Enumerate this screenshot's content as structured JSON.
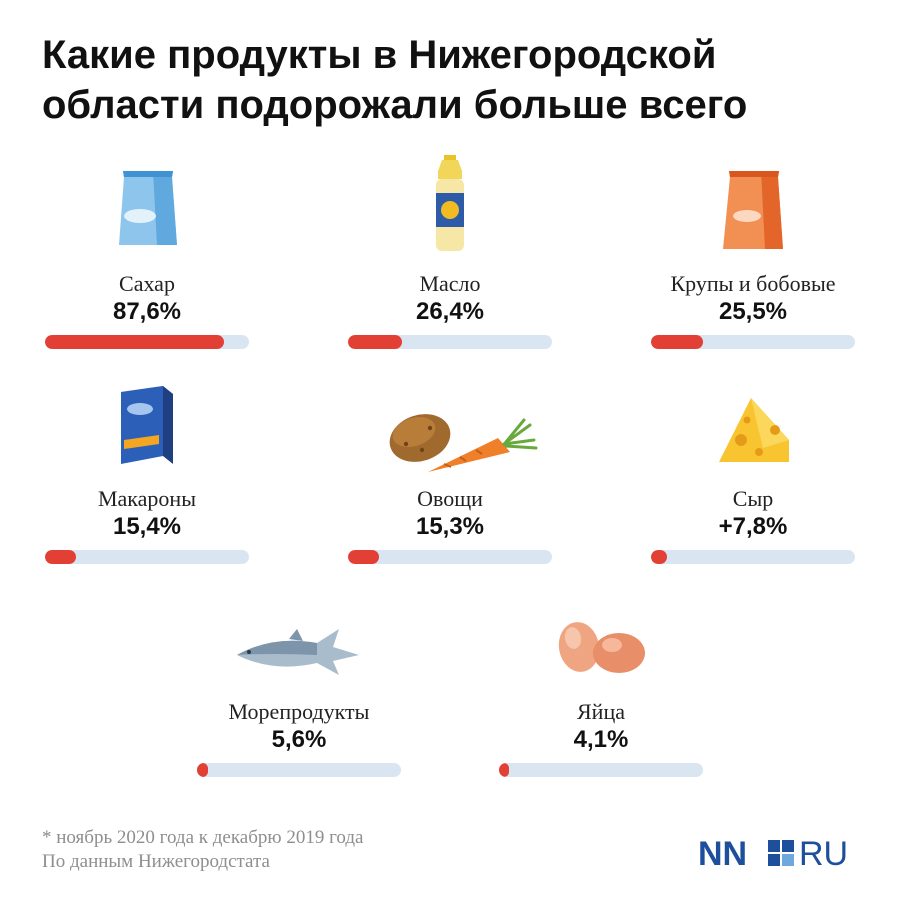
{
  "title": {
    "line1": "Какие продукты в Нижегородской",
    "line2": "области подорожали больше всего"
  },
  "colors": {
    "bar_fill": "#e23f35",
    "bar_track": "#d9e6f1",
    "logo_blue": "#1d4f9c"
  },
  "chart_data": {
    "type": "bar",
    "orientation": "horizontal",
    "categories": [
      "Сахар",
      "Масло",
      "Крупы и бобовые",
      "Макароны",
      "Овощи",
      "Сыр",
      "Морепродукты",
      "Яйца"
    ],
    "value_labels": [
      "87,6%",
      "26,4%",
      "25,5%",
      "15,4%",
      "15,3%",
      "+7,8%",
      "5,6%",
      "4,1%"
    ],
    "values": [
      87.6,
      26.4,
      25.5,
      15.4,
      15.3,
      7.8,
      5.6,
      4.1
    ],
    "icons": [
      "sugar-bag-icon",
      "oil-bottle-icon",
      "grain-bag-icon",
      "pasta-box-icon",
      "vegetables-icon",
      "cheese-icon",
      "fish-icon",
      "eggs-icon"
    ],
    "xlim": [
      0,
      100
    ]
  },
  "footnote": {
    "line1": "* ноябрь 2020 года к декабрю 2019 года",
    "line2": "По данным Нижегородстата"
  },
  "logo": {
    "text_left": "NN",
    "text_right": "RU"
  }
}
